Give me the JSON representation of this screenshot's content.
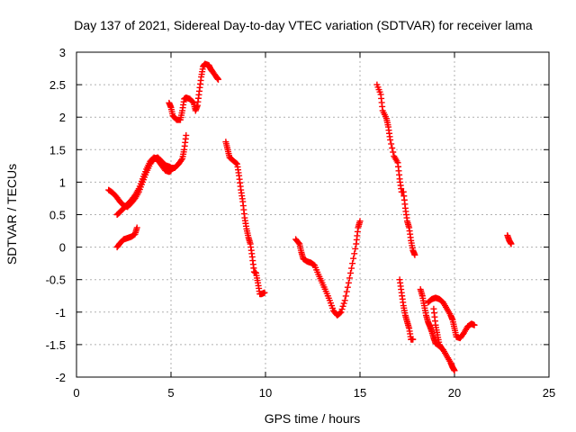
{
  "chart_data": {
    "type": "scatter",
    "title": "Day 137 of 2021, Sidereal Day-to-day VTEC variation (SDTVAR) for receiver lama",
    "xlabel": "GPS time / hours",
    "ylabel": "SDTVAR / TECUs",
    "xlim": [
      0,
      25
    ],
    "ylim": [
      -2,
      3
    ],
    "xticks": [
      0,
      5,
      10,
      15,
      20,
      25
    ],
    "yticks": [
      -2,
      -1.5,
      -1,
      -0.5,
      0,
      0.5,
      1,
      1.5,
      2,
      2.5,
      3
    ],
    "grid": true,
    "marker": "+",
    "color": "#ff0000",
    "series": [
      {
        "segments": [
          [
            [
              1.7,
              0.88
            ],
            [
              1.9,
              0.84
            ],
            [
              2.1,
              0.78
            ],
            [
              2.3,
              0.7
            ],
            [
              2.5,
              0.64
            ],
            [
              2.7,
              0.62
            ],
            [
              2.9,
              0.68
            ],
            [
              3.1,
              0.75
            ],
            [
              3.3,
              0.85
            ],
            [
              3.5,
              1.0
            ],
            [
              3.7,
              1.15
            ],
            [
              3.9,
              1.28
            ],
            [
              4.1,
              1.36
            ],
            [
              4.3,
              1.38
            ],
            [
              4.5,
              1.32
            ],
            [
              4.7,
              1.26
            ],
            [
              4.9,
              1.24
            ],
            [
              5.0,
              1.22
            ],
            [
              5.2,
              1.22
            ],
            [
              5.4,
              1.28
            ],
            [
              5.6,
              1.36
            ],
            [
              5.7,
              1.5
            ],
            [
              5.8,
              1.72
            ]
          ],
          [
            [
              2.15,
              0.5
            ],
            [
              2.3,
              0.54
            ],
            [
              2.5,
              0.6
            ],
            [
              2.7,
              0.66
            ],
            [
              2.9,
              0.72
            ],
            [
              3.1,
              0.8
            ],
            [
              3.3,
              0.9
            ],
            [
              3.5,
              1.05
            ],
            [
              3.7,
              1.2
            ],
            [
              3.9,
              1.32
            ],
            [
              4.1,
              1.38
            ],
            [
              4.3,
              1.34
            ],
            [
              4.5,
              1.26
            ],
            [
              4.7,
              1.18
            ],
            [
              4.9,
              1.16
            ],
            [
              5.0,
              1.18
            ]
          ],
          [
            [
              2.15,
              0.0
            ],
            [
              2.3,
              0.06
            ],
            [
              2.5,
              0.12
            ],
            [
              2.7,
              0.14
            ],
            [
              2.9,
              0.16
            ],
            [
              3.1,
              0.2
            ],
            [
              3.2,
              0.3
            ]
          ],
          [
            [
              4.9,
              2.22
            ],
            [
              5.0,
              2.15
            ],
            [
              5.1,
              2.02
            ],
            [
              5.3,
              1.96
            ],
            [
              5.5,
              1.96
            ],
            [
              5.6,
              2.1
            ],
            [
              5.7,
              2.28
            ],
            [
              5.8,
              2.3
            ],
            [
              6.0,
              2.28
            ],
            [
              6.2,
              2.22
            ],
            [
              6.3,
              2.1
            ],
            [
              6.4,
              2.18
            ],
            [
              6.5,
              2.4
            ],
            [
              6.6,
              2.62
            ],
            [
              6.7,
              2.78
            ],
            [
              6.8,
              2.82
            ],
            [
              7.0,
              2.8
            ],
            [
              7.1,
              2.74
            ],
            [
              7.2,
              2.7
            ],
            [
              7.4,
              2.62
            ],
            [
              7.5,
              2.58
            ]
          ],
          [
            [
              7.9,
              1.62
            ],
            [
              8.0,
              1.5
            ],
            [
              8.1,
              1.38
            ],
            [
              8.3,
              1.33
            ],
            [
              8.5,
              1.28
            ],
            [
              8.6,
              1.1
            ],
            [
              8.7,
              0.88
            ],
            [
              8.8,
              0.7
            ],
            [
              8.9,
              0.45
            ],
            [
              9.0,
              0.28
            ],
            [
              9.1,
              0.15
            ],
            [
              9.2,
              0.05
            ],
            [
              9.3,
              -0.15
            ],
            [
              9.4,
              -0.38
            ],
            [
              9.5,
              -0.4
            ],
            [
              9.6,
              -0.55
            ],
            [
              9.7,
              -0.72
            ],
            [
              9.8,
              -0.72
            ],
            [
              9.95,
              -0.7
            ]
          ],
          [
            [
              11.6,
              0.12
            ],
            [
              11.8,
              0.05
            ],
            [
              11.9,
              -0.08
            ],
            [
              12.0,
              -0.18
            ],
            [
              12.2,
              -0.22
            ],
            [
              12.4,
              -0.24
            ],
            [
              12.6,
              -0.28
            ],
            [
              12.8,
              -0.42
            ],
            [
              13.0,
              -0.55
            ],
            [
              13.2,
              -0.68
            ],
            [
              13.4,
              -0.82
            ],
            [
              13.6,
              -0.98
            ],
            [
              13.8,
              -1.05
            ],
            [
              14.0,
              -1.0
            ],
            [
              14.2,
              -0.82
            ],
            [
              14.4,
              -0.55
            ],
            [
              14.6,
              -0.25
            ],
            [
              14.8,
              0.05
            ],
            [
              14.9,
              0.3
            ],
            [
              15.0,
              0.4
            ]
          ],
          [
            [
              15.9,
              2.5
            ],
            [
              16.1,
              2.35
            ],
            [
              16.2,
              2.1
            ],
            [
              16.4,
              1.98
            ],
            [
              16.5,
              1.85
            ],
            [
              16.6,
              1.65
            ],
            [
              16.8,
              1.4
            ],
            [
              17.0,
              1.3
            ],
            [
              17.1,
              1.05
            ],
            [
              17.2,
              0.85
            ],
            [
              17.3,
              0.85
            ],
            [
              17.4,
              0.6
            ],
            [
              17.5,
              0.4
            ],
            [
              17.6,
              0.3
            ],
            [
              17.7,
              0.1
            ],
            [
              17.8,
              -0.05
            ],
            [
              17.9,
              -0.12
            ]
          ],
          [
            [
              17.1,
              -0.5
            ],
            [
              17.2,
              -0.7
            ],
            [
              17.3,
              -0.9
            ],
            [
              17.4,
              -1.05
            ],
            [
              17.5,
              -1.15
            ],
            [
              17.6,
              -1.25
            ],
            [
              17.7,
              -1.42
            ],
            [
              17.8,
              -1.42
            ]
          ],
          [
            [
              18.2,
              -0.65
            ],
            [
              18.3,
              -0.75
            ],
            [
              18.4,
              -0.9
            ],
            [
              18.5,
              -1.05
            ],
            [
              18.6,
              -1.15
            ],
            [
              18.7,
              -1.22
            ],
            [
              18.8,
              -1.3
            ],
            [
              18.9,
              -1.4
            ],
            [
              19.0,
              -1.48
            ],
            [
              19.2,
              -1.52
            ],
            [
              19.4,
              -1.58
            ],
            [
              19.6,
              -1.68
            ],
            [
              19.8,
              -1.78
            ],
            [
              19.9,
              -1.85
            ],
            [
              20.0,
              -1.9
            ]
          ],
          [
            [
              18.6,
              -0.85
            ],
            [
              18.8,
              -0.8
            ],
            [
              19.0,
              -0.78
            ],
            [
              19.2,
              -0.8
            ],
            [
              19.4,
              -0.85
            ],
            [
              19.6,
              -0.95
            ],
            [
              19.8,
              -1.05
            ],
            [
              19.9,
              -1.12
            ],
            [
              20.0,
              -1.25
            ],
            [
              20.1,
              -1.38
            ],
            [
              20.3,
              -1.4
            ],
            [
              20.5,
              -1.32
            ],
            [
              20.7,
              -1.22
            ],
            [
              20.9,
              -1.18
            ],
            [
              21.05,
              -1.2
            ]
          ],
          [
            [
              18.9,
              -0.95
            ],
            [
              19.0,
              -1.2
            ],
            [
              19.1,
              -1.35
            ],
            [
              19.2,
              -1.5
            ],
            [
              19.3,
              -1.55
            ]
          ],
          [
            [
              22.8,
              0.18
            ],
            [
              22.9,
              0.1
            ],
            [
              23.0,
              0.05
            ]
          ]
        ]
      }
    ]
  }
}
